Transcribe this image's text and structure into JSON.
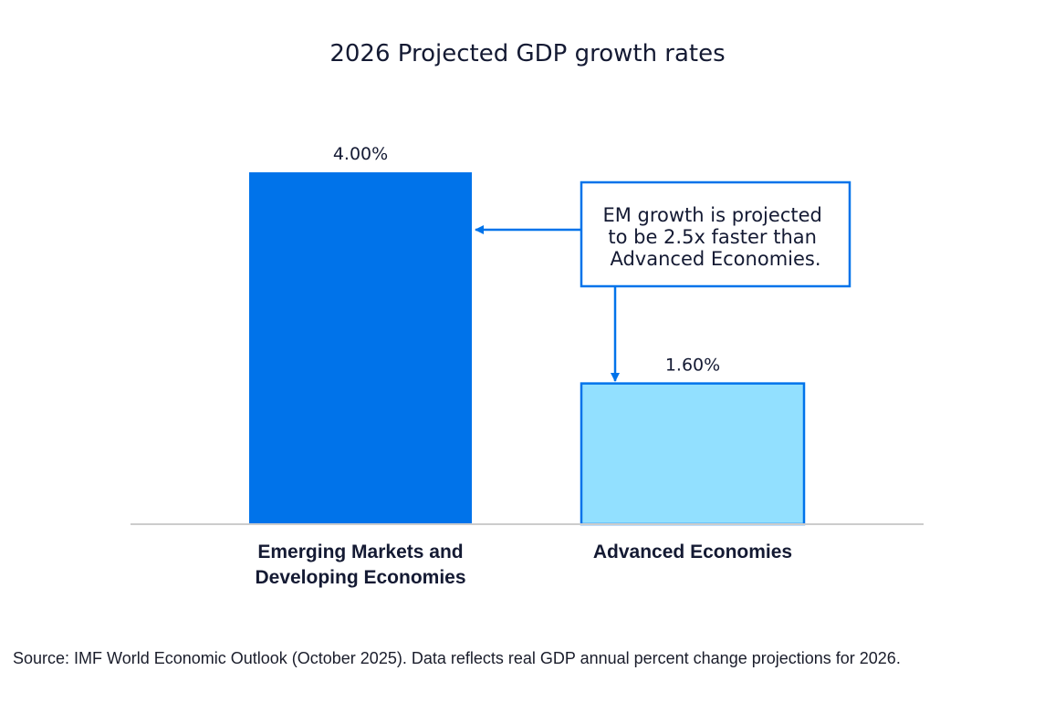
{
  "chart_data": {
    "type": "bar",
    "title": "2026 Projected GDP growth rates",
    "categories": [
      [
        "Emerging Markets and",
        "Developing Economies"
      ],
      [
        "Advanced Economies"
      ]
    ],
    "values": [
      4.0,
      1.6
    ],
    "value_labels": [
      "4.00%",
      "1.60%"
    ],
    "ylim": [
      0,
      4.0
    ],
    "xlabel": "",
    "ylabel": "",
    "grid": false,
    "colors": {
      "bar_1_fill": "#0073ea",
      "bar_2_fill": "#92e0ff",
      "bar_2_stroke": "#0073ea",
      "axis": "#cccccc",
      "arrow": "#0073ea"
    },
    "annotation": {
      "lines": [
        "EM growth is projected",
        "to be 2.5x faster than",
        "Advanced Economies."
      ]
    }
  },
  "source_text": "Source: IMF World Economic Outlook (October 2025). Data reflects real GDP annual percent change projections for 2026."
}
